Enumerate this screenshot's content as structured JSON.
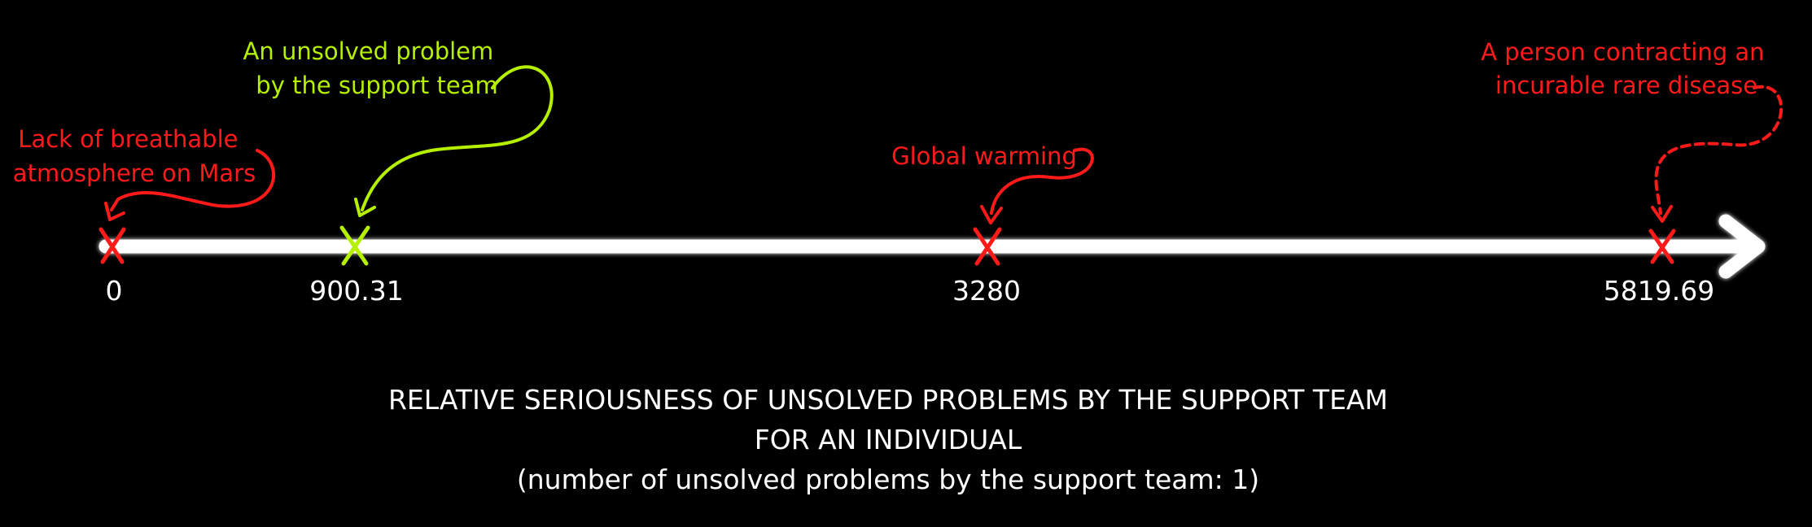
{
  "colors": {
    "background": "#000000",
    "axis": "#ffffff",
    "red": "#ff1a1a",
    "green": "#b5f000",
    "text": "#ffffff"
  },
  "markers": [
    {
      "value_label": "0",
      "label_lines": [
        "Lack of breathable",
        "atmosphere on Mars"
      ],
      "color": "red"
    },
    {
      "value_label": "900.31",
      "label_lines": [
        "An unsolved problem",
        "by the support team"
      ],
      "color": "green"
    },
    {
      "value_label": "3280",
      "label_lines": [
        "Global warming"
      ],
      "color": "red"
    },
    {
      "value_label": "5819.69",
      "label_lines": [
        "A person contracting an",
        "incurable rare disease"
      ],
      "color": "red"
    }
  ],
  "caption": {
    "line1": "RELATIVE SERIOUSNESS OF UNSOLVED PROBLEMS BY THE SUPPORT TEAM",
    "line2": "FOR AN INDIVIDUAL",
    "line3": "(number of unsolved problems by the support team: 1)"
  }
}
